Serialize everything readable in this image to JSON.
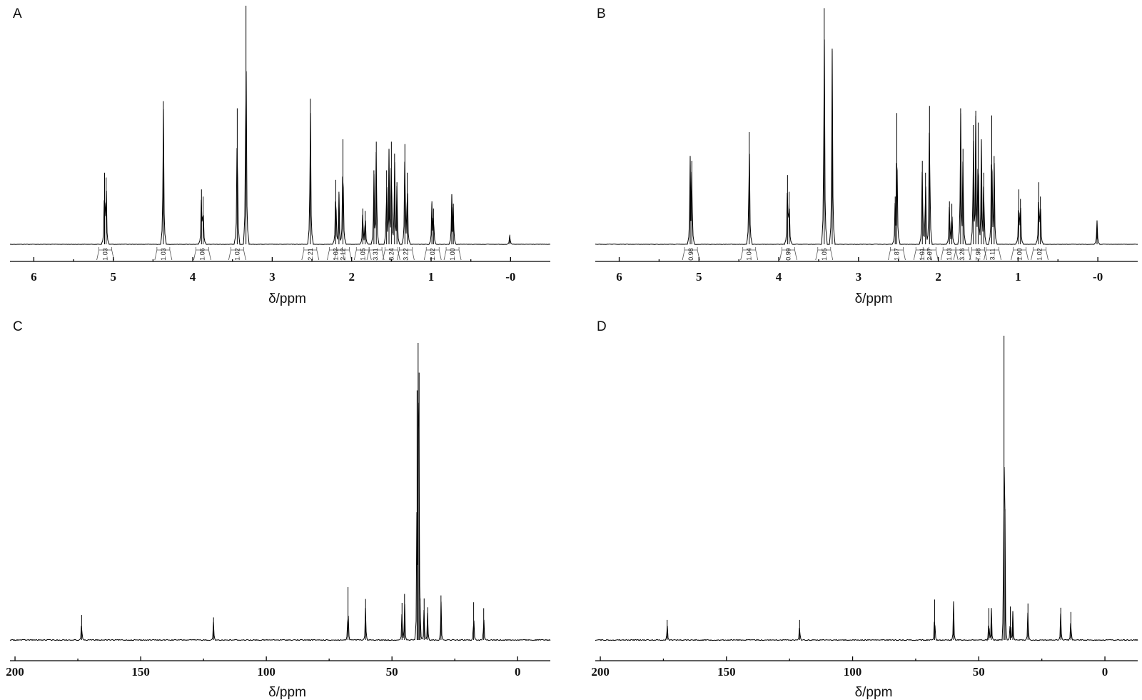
{
  "chart_data": [
    {
      "type": "line",
      "panel_label": "A",
      "xlabel": "δ/ppm",
      "xlim": [
        6.3,
        -0.5
      ],
      "xticks": [
        6,
        5,
        4,
        3,
        2,
        1,
        0
      ],
      "xtick_labels": [
        "6",
        "5",
        "4",
        "3",
        "2",
        "1",
        "-0"
      ],
      "peaks": [
        {
          "x": 5.11,
          "y": 0.3
        },
        {
          "x": 5.09,
          "y": 0.28
        },
        {
          "x": 4.37,
          "y": 0.6
        },
        {
          "x": 3.89,
          "y": 0.23
        },
        {
          "x": 3.87,
          "y": 0.2
        },
        {
          "x": 3.44,
          "y": 0.57
        },
        {
          "x": 3.33,
          "y": 1.0
        },
        {
          "x": 2.52,
          "y": 0.61
        },
        {
          "x": 2.2,
          "y": 0.27
        },
        {
          "x": 2.16,
          "y": 0.22
        },
        {
          "x": 2.11,
          "y": 0.44
        },
        {
          "x": 1.86,
          "y": 0.15
        },
        {
          "x": 1.83,
          "y": 0.14
        },
        {
          "x": 1.72,
          "y": 0.31
        },
        {
          "x": 1.69,
          "y": 0.43
        },
        {
          "x": 1.56,
          "y": 0.31
        },
        {
          "x": 1.53,
          "y": 0.4
        },
        {
          "x": 1.5,
          "y": 0.43
        },
        {
          "x": 1.46,
          "y": 0.38
        },
        {
          "x": 1.43,
          "y": 0.26
        },
        {
          "x": 1.33,
          "y": 0.42
        },
        {
          "x": 1.3,
          "y": 0.3
        },
        {
          "x": 0.99,
          "y": 0.18
        },
        {
          "x": 0.97,
          "y": 0.15
        },
        {
          "x": 0.74,
          "y": 0.21
        },
        {
          "x": 0.72,
          "y": 0.17
        },
        {
          "x": 0.01,
          "y": 0.04
        }
      ],
      "integrals": [
        {
          "x": 5.1,
          "label": "1.03"
        },
        {
          "x": 4.37,
          "label": "1.03"
        },
        {
          "x": 3.88,
          "label": "1.06"
        },
        {
          "x": 3.44,
          "label": "1.02"
        },
        {
          "x": 2.52,
          "label": "2.21"
        },
        {
          "x": 2.2,
          "label": "1.02"
        },
        {
          "x": 2.11,
          "label": "2.12"
        },
        {
          "x": 1.86,
          "label": "1.05"
        },
        {
          "x": 1.7,
          "label": "3.31"
        },
        {
          "x": 1.5,
          "label": "8.24"
        },
        {
          "x": 1.32,
          "label": "3.22"
        },
        {
          "x": 0.98,
          "label": "1.02"
        },
        {
          "x": 0.73,
          "label": "1.00"
        }
      ]
    },
    {
      "type": "line",
      "panel_label": "B",
      "xlabel": "δ/ppm",
      "xlim": [
        6.3,
        -0.5
      ],
      "xticks": [
        6,
        5,
        4,
        3,
        2,
        1,
        0
      ],
      "xtick_labels": [
        "6",
        "5",
        "4",
        "3",
        "2",
        "1",
        "-0"
      ],
      "peaks": [
        {
          "x": 5.11,
          "y": 0.37
        },
        {
          "x": 5.09,
          "y": 0.35
        },
        {
          "x": 4.37,
          "y": 0.47
        },
        {
          "x": 3.89,
          "y": 0.29
        },
        {
          "x": 3.87,
          "y": 0.22
        },
        {
          "x": 3.43,
          "y": 0.99
        },
        {
          "x": 3.33,
          "y": 0.82
        },
        {
          "x": 2.52,
          "y": 0.55
        },
        {
          "x": 2.54,
          "y": 0.2
        },
        {
          "x": 2.2,
          "y": 0.35
        },
        {
          "x": 2.16,
          "y": 0.3
        },
        {
          "x": 2.11,
          "y": 0.58
        },
        {
          "x": 1.86,
          "y": 0.18
        },
        {
          "x": 1.83,
          "y": 0.17
        },
        {
          "x": 1.72,
          "y": 0.57
        },
        {
          "x": 1.69,
          "y": 0.4
        },
        {
          "x": 1.56,
          "y": 0.5
        },
        {
          "x": 1.53,
          "y": 0.56
        },
        {
          "x": 1.5,
          "y": 0.51
        },
        {
          "x": 1.46,
          "y": 0.44
        },
        {
          "x": 1.43,
          "y": 0.3
        },
        {
          "x": 1.33,
          "y": 0.54
        },
        {
          "x": 1.3,
          "y": 0.37
        },
        {
          "x": 0.99,
          "y": 0.23
        },
        {
          "x": 0.97,
          "y": 0.19
        },
        {
          "x": 0.74,
          "y": 0.26
        },
        {
          "x": 0.72,
          "y": 0.2
        },
        {
          "x": 0.01,
          "y": 0.1
        }
      ],
      "integrals": [
        {
          "x": 5.1,
          "label": "0.98"
        },
        {
          "x": 4.37,
          "label": "1.04"
        },
        {
          "x": 3.88,
          "label": "0.99"
        },
        {
          "x": 3.43,
          "label": "1.05"
        },
        {
          "x": 2.52,
          "label": "1.87"
        },
        {
          "x": 2.2,
          "label": "1.01"
        },
        {
          "x": 2.11,
          "label": "2.07"
        },
        {
          "x": 1.86,
          "label": "1.03"
        },
        {
          "x": 1.7,
          "label": "3.26"
        },
        {
          "x": 1.5,
          "label": "7.98"
        },
        {
          "x": 1.32,
          "label": "3.11"
        },
        {
          "x": 0.98,
          "label": "1.00"
        },
        {
          "x": 0.73,
          "label": "1.02"
        }
      ]
    },
    {
      "type": "line",
      "panel_label": "C",
      "xlabel": "δ/ppm",
      "xlim": [
        202,
        -13
      ],
      "xticks": [
        200,
        150,
        100,
        50,
        0
      ],
      "xtick_labels": [
        "200",
        "150",
        "100",
        "50",
        "0"
      ],
      "peaks": [
        {
          "x": 173.5,
          "y": 0.084
        },
        {
          "x": 121.0,
          "y": 0.076
        },
        {
          "x": 67.5,
          "y": 0.178
        },
        {
          "x": 60.5,
          "y": 0.138
        },
        {
          "x": 46.0,
          "y": 0.125
        },
        {
          "x": 45.0,
          "y": 0.155
        },
        {
          "x": 40.0,
          "y": 0.84
        },
        {
          "x": 39.6,
          "y": 1.0
        },
        {
          "x": 39.2,
          "y": 0.9
        },
        {
          "x": 38.8,
          "y": 0.14
        },
        {
          "x": 37.2,
          "y": 0.14
        },
        {
          "x": 35.8,
          "y": 0.11
        },
        {
          "x": 30.5,
          "y": 0.15
        },
        {
          "x": 17.5,
          "y": 0.127
        },
        {
          "x": 13.5,
          "y": 0.107
        }
      ]
    },
    {
      "type": "line",
      "panel_label": "D",
      "xlabel": "δ/ppm",
      "xlim": [
        202,
        -13
      ],
      "xticks": [
        200,
        150,
        100,
        50,
        0
      ],
      "xtick_labels": [
        "200",
        "150",
        "100",
        "50",
        "0"
      ],
      "peaks": [
        {
          "x": 173.5,
          "y": 0.066
        },
        {
          "x": 121.0,
          "y": 0.066
        },
        {
          "x": 67.5,
          "y": 0.133
        },
        {
          "x": 60.0,
          "y": 0.127
        },
        {
          "x": 46.0,
          "y": 0.105
        },
        {
          "x": 45.0,
          "y": 0.105
        },
        {
          "x": 40.0,
          "y": 1.0
        },
        {
          "x": 39.6,
          "y": 0.43
        },
        {
          "x": 37.5,
          "y": 0.11
        },
        {
          "x": 36.5,
          "y": 0.095
        },
        {
          "x": 30.5,
          "y": 0.12
        },
        {
          "x": 17.5,
          "y": 0.106
        },
        {
          "x": 13.5,
          "y": 0.092
        }
      ]
    }
  ]
}
